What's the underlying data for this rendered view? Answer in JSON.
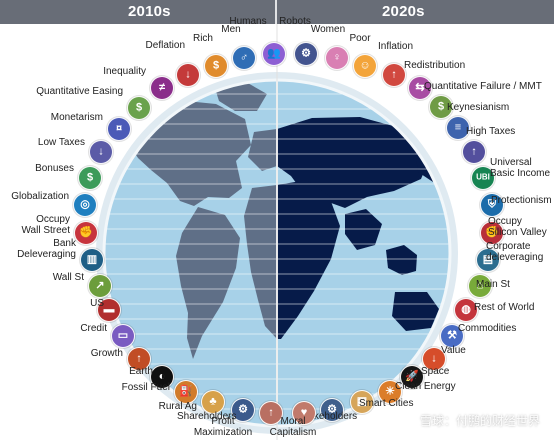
{
  "header": {
    "left_title": "2010s",
    "right_title": "2020s"
  },
  "left_items": [
    {
      "label": "Humans",
      "color": "#8d5fd3",
      "icon_name": "humans-icon",
      "glyph": "👥"
    },
    {
      "label": "Men",
      "color": "#2f6db5",
      "icon_name": "men-icon",
      "glyph": "♂"
    },
    {
      "label": "Rich",
      "color": "#e08b2c",
      "icon_name": "money-bag-icon",
      "glyph": "$"
    },
    {
      "label": "Deflation",
      "color": "#c43a3a",
      "icon_name": "down-arrow-icon",
      "glyph": "↓"
    },
    {
      "label": "Inequality",
      "color": "#8a2d8a",
      "icon_name": "inequality-icon",
      "glyph": "≠"
    },
    {
      "label": "Quantitative Easing",
      "color": "#6aa24c",
      "icon_name": "printer-icon",
      "glyph": "$"
    },
    {
      "label": "Monetarism",
      "color": "#4b5ab7",
      "icon_name": "coins-icon",
      "glyph": "¤"
    },
    {
      "label": "Low Taxes",
      "color": "#5b5ba7",
      "icon_name": "low-taxes-icon",
      "glyph": "↓"
    },
    {
      "label": "Bonuses",
      "color": "#3c9b5a",
      "icon_name": "bonus-icon",
      "glyph": "$"
    },
    {
      "label": "Globalization",
      "color": "#1f7fbf",
      "icon_name": "globe-icon",
      "glyph": "◎"
    },
    {
      "label": "Occupy\nWall Street",
      "color": "#c7343d",
      "icon_name": "protest-icon",
      "glyph": "✊"
    },
    {
      "label": "Bank\nDeleveraging",
      "color": "#1f5f86",
      "icon_name": "bank-icon",
      "glyph": "▥"
    },
    {
      "label": "Wall St",
      "color": "#6c9d3c",
      "icon_name": "chart-up-icon",
      "glyph": "↗"
    },
    {
      "label": "US",
      "color": "#b12e2e",
      "icon_name": "us-map-icon",
      "glyph": "▬"
    },
    {
      "label": "Credit",
      "color": "#7a5bc1",
      "icon_name": "credit-card-icon",
      "glyph": "▭"
    },
    {
      "label": "Growth",
      "color": "#c14d25",
      "icon_name": "growth-icon",
      "glyph": "↑"
    },
    {
      "label": "Earth",
      "color": "#101010",
      "icon_name": "earth-icon",
      "glyph": "◐"
    },
    {
      "label": "Fossil Fuel",
      "color": "#d17b2a",
      "icon_name": "oil-rig-icon",
      "glyph": "⛽"
    },
    {
      "label": "Rural Ag",
      "color": "#d7a14a",
      "icon_name": "farmer-icon",
      "glyph": "♣"
    },
    {
      "label": "Shareholders",
      "color": "#3b5a8c",
      "icon_name": "shareholders-icon",
      "glyph": "⚙"
    },
    {
      "label": "Profit\nMaximization",
      "color": "#b96f62",
      "icon_name": "profit-icon",
      "glyph": "↑"
    }
  ],
  "right_items": [
    {
      "label": "Robots",
      "color": "#43548f",
      "icon_name": "robot-icon",
      "glyph": "⚙"
    },
    {
      "label": "Women",
      "color": "#d97fb3",
      "icon_name": "women-icon",
      "glyph": "♀"
    },
    {
      "label": "Poor",
      "color": "#f3a43a",
      "icon_name": "poor-icon",
      "glyph": "☺"
    },
    {
      "label": "Inflation",
      "color": "#d1483f",
      "icon_name": "inflation-icon",
      "glyph": "↑"
    },
    {
      "label": "Redistribution",
      "color": "#a84ca3",
      "icon_name": "redistribution-icon",
      "glyph": "⇆"
    },
    {
      "label": "Quantitative Failure / MMT",
      "color": "#6f9b45",
      "icon_name": "mmt-icon",
      "glyph": "$"
    },
    {
      "label": "Keynesianism",
      "color": "#3d63ad",
      "icon_name": "keynes-icon",
      "glyph": "≡"
    },
    {
      "label": "High Taxes",
      "color": "#534f9d",
      "icon_name": "high-taxes-icon",
      "glyph": "↑"
    },
    {
      "label": "Universal\nBasic Income",
      "color": "#178452",
      "icon_name": "ubi-icon",
      "glyph": "UBI"
    },
    {
      "label": "Protectionism",
      "color": "#1b6caa",
      "icon_name": "shield-icon",
      "glyph": "⛨"
    },
    {
      "label": "Occupy\nSilicon Valley",
      "color": "#b82e39",
      "icon_name": "silicon-valley-icon",
      "glyph": "✊"
    },
    {
      "label": "Corporate\ndeleveraging",
      "color": "#2b6d8f",
      "icon_name": "corporate-icon",
      "glyph": "▤"
    },
    {
      "label": "Main St",
      "color": "#78aa3a",
      "icon_name": "main-street-icon",
      "glyph": "⌂"
    },
    {
      "label": "Rest of World",
      "color": "#c4353c",
      "icon_name": "world-icon",
      "glyph": "◍"
    },
    {
      "label": "Commodities",
      "color": "#496cc4",
      "icon_name": "commodities-icon",
      "glyph": "⚒"
    },
    {
      "label": "Value",
      "color": "#d64d2a",
      "icon_name": "value-icon",
      "glyph": "↓"
    },
    {
      "label": "Space",
      "color": "#161616",
      "icon_name": "space-icon",
      "glyph": "🚀"
    },
    {
      "label": "Clean Energy",
      "color": "#db7d2a",
      "icon_name": "clean-energy-icon",
      "glyph": "☀"
    },
    {
      "label": "Smart Cities",
      "color": "#d6a55a",
      "icon_name": "smart-cities-icon",
      "glyph": "▦"
    },
    {
      "label": "Stakeholders",
      "color": "#3f5f8c",
      "icon_name": "stakeholders-icon",
      "glyph": "⚙"
    },
    {
      "label": "Moral\nCapitalism",
      "color": "#c17a6b",
      "icon_name": "moral-capitalism-icon",
      "glyph": "♥"
    }
  ],
  "watermark": "雪球：付鹏的财经世界"
}
